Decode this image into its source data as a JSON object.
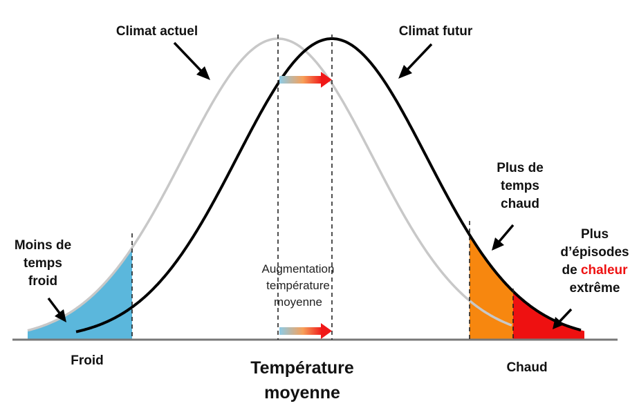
{
  "labels": {
    "current_climate": "Climat actuel",
    "future_climate": "Climat futur",
    "less_cold_line1": "Moins de",
    "less_cold_line2": "temps",
    "less_cold_line3": "froid",
    "more_hot_line1": "Plus de",
    "more_hot_line2": "temps",
    "more_hot_line3": "chaud",
    "extreme_line1": "Plus",
    "extreme_line2": "d’épisodes",
    "extreme_line3a": "de ",
    "extreme_line3b": "chaleur",
    "extreme_line4": "extrême",
    "mean_increase_line1": "Augmentation",
    "mean_increase_line2": "température",
    "mean_increase_line3": "moyenne",
    "axis_cold": "Froid",
    "axis_hot": "Chaud",
    "axis_title_line1": "Température",
    "axis_title_line2": "moyenne"
  },
  "colors": {
    "current_curve": "#c8c8c8",
    "future_curve": "#000000",
    "cold_fill": "#5bb7dc",
    "hot_fill": "#f7870f",
    "extreme_fill": "#ee1111",
    "cold_text": "#2ea5dc",
    "hot_text": "#f4a300",
    "extreme_text": "#ee1111"
  }
}
